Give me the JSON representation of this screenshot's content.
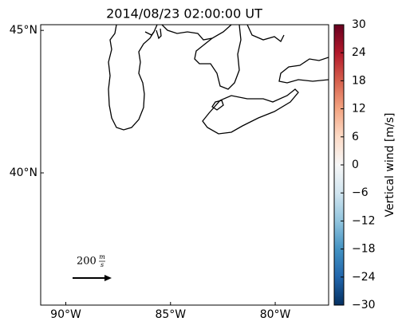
{
  "title": "2014/08/23 02:00:00 UT",
  "map": {
    "lonlim": [
      -91.2,
      -77.45
    ],
    "latlim": [
      35.36,
      45.2
    ],
    "lonticks": [
      {
        "value": -90,
        "label": "90°W"
      },
      {
        "value": -85,
        "label": "85°W"
      },
      {
        "value": -80,
        "label": "80°W"
      }
    ],
    "latticks": [
      {
        "value": 45,
        "label": "45°N"
      },
      {
        "value": 40,
        "label": "40°N"
      }
    ]
  },
  "colorbar": {
    "label": "Vertical wind [m/s]",
    "lim": [
      -30,
      30
    ],
    "colormap": "RdBu_r",
    "ticks": [
      30,
      24,
      18,
      12,
      6,
      0,
      {
        "value": -6,
        "label": "−6"
      },
      {
        "value": -12,
        "label": "−12"
      },
      {
        "value": -18,
        "label": "−18"
      },
      {
        "value": -24,
        "label": "−24"
      },
      {
        "value": -30,
        "label": "−30"
      }
    ]
  },
  "quiver_key": {
    "value": 200,
    "unit_numerator": "m",
    "unit_denominator": "s"
  }
}
